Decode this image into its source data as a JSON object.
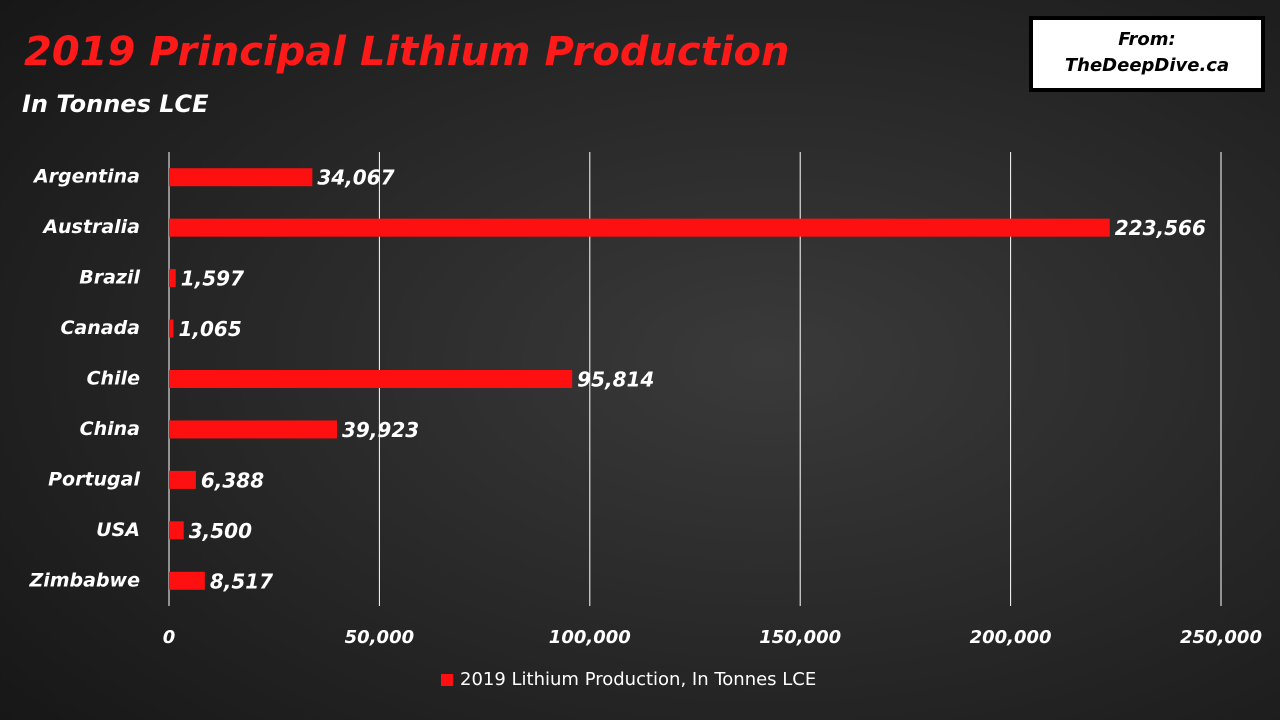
{
  "chart_data": {
    "type": "bar",
    "orientation": "horizontal",
    "title": "2019 Principal Lithium Production",
    "subtitle": "In Tonnes LCE",
    "source_label": "From:",
    "source": "TheDeepDive.ca",
    "categories": [
      "Argentina",
      "Australia",
      "Brazil",
      "Canada",
      "Chile",
      "China",
      "Portugal",
      "USA",
      "Zimbabwe"
    ],
    "series": [
      {
        "name": "2019 Lithium Production, In Tonnes LCE",
        "color": "#ff1010",
        "values": [
          34067,
          223566,
          1597,
          1065,
          95814,
          39923,
          6388,
          3500,
          8517
        ],
        "value_labels": [
          "34,067",
          "223,566",
          "1,597",
          "1,065",
          "95,814",
          "39,923",
          "6,388",
          "3,500",
          "8,517"
        ]
      }
    ],
    "xlim": [
      0,
      250000
    ],
    "xticks": [
      0,
      {
        "value": 50000,
        "label": "50,000"
      },
      {
        "value": 100000,
        "label": "100,000"
      },
      {
        "value": 150000,
        "label": "150,000"
      },
      {
        "value": 200000,
        "label": "200,000"
      },
      {
        "value": 250000,
        "label": "250,000"
      }
    ],
    "grid": true,
    "legend": "bottom"
  }
}
